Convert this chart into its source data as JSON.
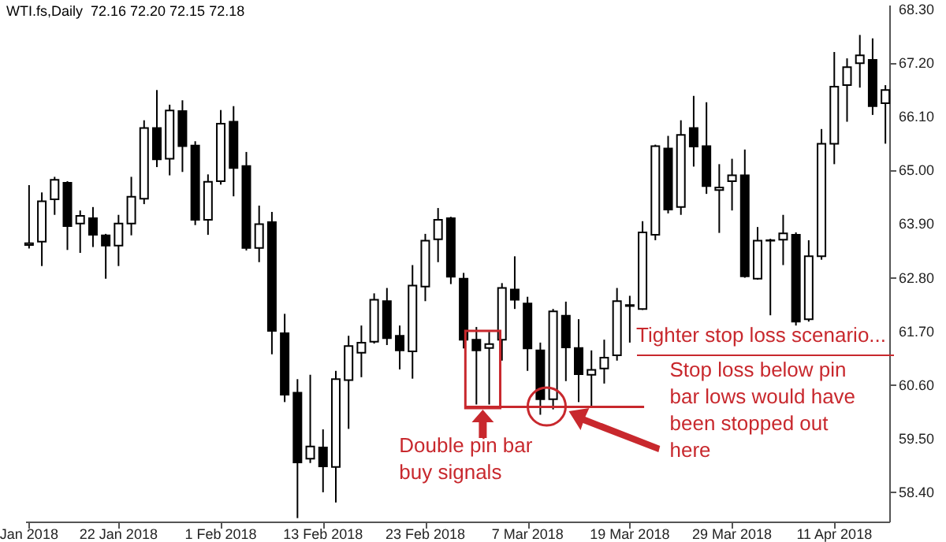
{
  "chart_data": {
    "type": "candlestick",
    "title": "WTI.fs,Daily  72.16 72.20 72.15 72.18",
    "categories": [
      "Jan 2018",
      null,
      null,
      null,
      null,
      null,
      null,
      "22 Jan 2018",
      null,
      null,
      null,
      null,
      null,
      null,
      null,
      "1 Feb 2018",
      null,
      null,
      null,
      null,
      null,
      null,
      null,
      "13 Feb 2018",
      null,
      null,
      null,
      null,
      null,
      null,
      null,
      "23 Feb 2018",
      null,
      null,
      null,
      null,
      null,
      null,
      null,
      "7 Mar 2018",
      null,
      null,
      null,
      null,
      null,
      null,
      null,
      "19 Mar 2018",
      null,
      null,
      null,
      null,
      null,
      null,
      null,
      "29 Mar 2018",
      null,
      null,
      null,
      null,
      null,
      null,
      null,
      "11 Apr 2018",
      null,
      null,
      null,
      null
    ],
    "ohlc": [
      [
        63.47,
        64.7,
        63.4,
        63.51
      ],
      [
        63.54,
        64.55,
        63.04,
        64.37
      ],
      [
        64.41,
        64.87,
        64.09,
        64.81
      ],
      [
        64.75,
        64.78,
        63.37,
        63.86
      ],
      [
        63.91,
        64.18,
        63.31,
        64.07
      ],
      [
        64.02,
        64.25,
        63.43,
        63.68
      ],
      [
        63.67,
        63.7,
        62.78,
        63.46
      ],
      [
        63.46,
        64.09,
        63.04,
        63.91
      ],
      [
        63.91,
        64.87,
        63.67,
        64.46
      ],
      [
        64.42,
        66.03,
        64.31,
        65.87
      ],
      [
        65.87,
        66.65,
        65.07,
        65.23
      ],
      [
        65.24,
        66.35,
        64.9,
        66.23
      ],
      [
        66.22,
        66.44,
        64.97,
        65.5
      ],
      [
        65.51,
        65.6,
        63.88,
        63.99
      ],
      [
        63.99,
        64.92,
        63.68,
        64.77
      ],
      [
        64.78,
        66.24,
        64.71,
        65.96
      ],
      [
        66.0,
        66.32,
        64.47,
        65.05
      ],
      [
        65.09,
        65.38,
        63.36,
        63.41
      ],
      [
        63.41,
        64.28,
        63.12,
        63.9
      ],
      [
        63.94,
        64.15,
        61.23,
        61.71
      ],
      [
        61.66,
        62.06,
        60.25,
        60.4
      ],
      [
        60.44,
        60.72,
        57.87,
        59.01
      ],
      [
        59.09,
        60.81,
        59.0,
        59.34
      ],
      [
        59.32,
        59.69,
        58.4,
        58.93
      ],
      [
        58.92,
        60.89,
        58.19,
        60.72
      ],
      [
        60.7,
        61.61,
        59.7,
        61.4
      ],
      [
        61.26,
        61.82,
        60.76,
        61.47
      ],
      [
        61.49,
        62.48,
        61.45,
        62.35
      ],
      [
        62.32,
        62.59,
        61.42,
        61.56
      ],
      [
        61.61,
        61.82,
        60.92,
        61.31
      ],
      [
        61.29,
        63.06,
        60.73,
        62.64
      ],
      [
        62.62,
        63.7,
        62.32,
        63.56
      ],
      [
        63.59,
        64.23,
        63.12,
        63.99
      ],
      [
        64.02,
        64.05,
        62.67,
        62.82
      ],
      [
        62.78,
        62.9,
        61.35,
        61.53
      ],
      [
        61.53,
        61.79,
        60.2,
        61.31
      ],
      [
        61.36,
        61.69,
        60.2,
        61.44
      ],
      [
        61.53,
        62.69,
        61.1,
        62.59
      ],
      [
        62.56,
        63.24,
        62.16,
        62.35
      ],
      [
        62.27,
        62.41,
        60.89,
        61.35
      ],
      [
        61.31,
        61.47,
        59.99,
        60.31
      ],
      [
        60.31,
        62.16,
        60.1,
        62.11
      ],
      [
        62.02,
        62.31,
        60.68,
        61.37
      ],
      [
        61.36,
        61.95,
        60.25,
        60.82
      ],
      [
        60.81,
        61.31,
        60.15,
        60.91
      ],
      [
        60.94,
        61.53,
        60.63,
        61.16
      ],
      [
        61.21,
        62.59,
        61.1,
        62.32
      ],
      [
        62.22,
        62.43,
        61.47,
        62.24
      ],
      [
        62.16,
        63.96,
        62.14,
        63.73
      ],
      [
        63.68,
        65.53,
        63.57,
        65.5
      ],
      [
        65.45,
        65.71,
        64.12,
        64.2
      ],
      [
        64.25,
        66.03,
        64.09,
        65.73
      ],
      [
        65.87,
        66.53,
        65.08,
        65.49
      ],
      [
        65.5,
        66.4,
        64.52,
        64.68
      ],
      [
        64.6,
        65.13,
        63.72,
        64.65
      ],
      [
        64.78,
        65.24,
        64.18,
        64.9
      ],
      [
        64.9,
        65.43,
        62.8,
        62.83
      ],
      [
        62.78,
        63.84,
        62.76,
        63.56
      ],
      [
        63.56,
        63.6,
        62.03,
        63.57
      ],
      [
        63.58,
        64.09,
        63.06,
        63.71
      ],
      [
        63.68,
        63.73,
        61.82,
        61.9
      ],
      [
        61.95,
        63.57,
        61.9,
        63.24
      ],
      [
        63.24,
        65.85,
        63.17,
        65.55
      ],
      [
        65.55,
        67.43,
        65.13,
        66.72
      ],
      [
        66.75,
        67.3,
        66.0,
        67.12
      ],
      [
        67.2,
        67.78,
        66.7,
        67.36
      ],
      [
        67.27,
        67.71,
        66.14,
        66.32
      ],
      [
        66.38,
        66.75,
        65.55,
        66.65
      ]
    ],
    "ylim": [
      57.8,
      68.4
    ],
    "yticks": [
      {
        "value": 58.4,
        "label": "58.40"
      },
      {
        "value": 59.5,
        "label": "59.50"
      },
      {
        "value": 60.6,
        "label": "60.60"
      },
      {
        "value": 61.7,
        "label": "61.70"
      },
      {
        "value": 62.8,
        "label": "62.80"
      },
      {
        "value": 63.9,
        "label": "63.90"
      },
      {
        "value": 65.0,
        "label": "65.00"
      },
      {
        "value": 66.1,
        "label": "66.10"
      },
      {
        "value": 67.2,
        "label": "67.20"
      },
      {
        "value": 68.3,
        "label": "68.30"
      }
    ],
    "ref_lines": [
      {
        "axis": "y",
        "value": 60.15,
        "color": "#c8282d"
      }
    ],
    "annotations": [
      "Double pin bar\nbuy signals",
      "Tighter stop loss scenario...",
      "Stop loss below pin\nbar lows would have\nbeen stopped out\nhere"
    ]
  }
}
